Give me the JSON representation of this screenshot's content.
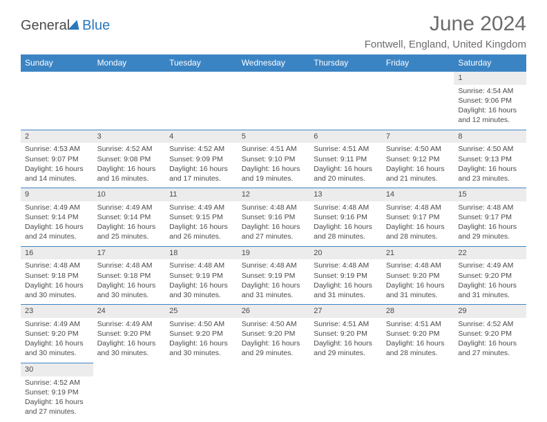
{
  "logo": {
    "text1": "General",
    "text2": "Blue"
  },
  "title": "June 2024",
  "location": "Fontwell, England, United Kingdom",
  "colors": {
    "header_bg": "#3b84c4",
    "header_text": "#ffffff",
    "daynum_bg": "#ececec",
    "cell_border": "#3b84c4",
    "text": "#4a4a4a",
    "logo_gray": "#4a4a4a",
    "logo_blue": "#2a78bb",
    "title_gray": "#6b6b6b"
  },
  "day_headers": [
    "Sunday",
    "Monday",
    "Tuesday",
    "Wednesday",
    "Thursday",
    "Friday",
    "Saturday"
  ],
  "weeks": [
    [
      null,
      null,
      null,
      null,
      null,
      null,
      {
        "n": "1",
        "sr": "4:54 AM",
        "ss": "9:06 PM",
        "dl": "16 hours and 12 minutes."
      }
    ],
    [
      {
        "n": "2",
        "sr": "4:53 AM",
        "ss": "9:07 PM",
        "dl": "16 hours and 14 minutes."
      },
      {
        "n": "3",
        "sr": "4:52 AM",
        "ss": "9:08 PM",
        "dl": "16 hours and 16 minutes."
      },
      {
        "n": "4",
        "sr": "4:52 AM",
        "ss": "9:09 PM",
        "dl": "16 hours and 17 minutes."
      },
      {
        "n": "5",
        "sr": "4:51 AM",
        "ss": "9:10 PM",
        "dl": "16 hours and 19 minutes."
      },
      {
        "n": "6",
        "sr": "4:51 AM",
        "ss": "9:11 PM",
        "dl": "16 hours and 20 minutes."
      },
      {
        "n": "7",
        "sr": "4:50 AM",
        "ss": "9:12 PM",
        "dl": "16 hours and 21 minutes."
      },
      {
        "n": "8",
        "sr": "4:50 AM",
        "ss": "9:13 PM",
        "dl": "16 hours and 23 minutes."
      }
    ],
    [
      {
        "n": "9",
        "sr": "4:49 AM",
        "ss": "9:14 PM",
        "dl": "16 hours and 24 minutes."
      },
      {
        "n": "10",
        "sr": "4:49 AM",
        "ss": "9:14 PM",
        "dl": "16 hours and 25 minutes."
      },
      {
        "n": "11",
        "sr": "4:49 AM",
        "ss": "9:15 PM",
        "dl": "16 hours and 26 minutes."
      },
      {
        "n": "12",
        "sr": "4:48 AM",
        "ss": "9:16 PM",
        "dl": "16 hours and 27 minutes."
      },
      {
        "n": "13",
        "sr": "4:48 AM",
        "ss": "9:16 PM",
        "dl": "16 hours and 28 minutes."
      },
      {
        "n": "14",
        "sr": "4:48 AM",
        "ss": "9:17 PM",
        "dl": "16 hours and 28 minutes."
      },
      {
        "n": "15",
        "sr": "4:48 AM",
        "ss": "9:17 PM",
        "dl": "16 hours and 29 minutes."
      }
    ],
    [
      {
        "n": "16",
        "sr": "4:48 AM",
        "ss": "9:18 PM",
        "dl": "16 hours and 30 minutes."
      },
      {
        "n": "17",
        "sr": "4:48 AM",
        "ss": "9:18 PM",
        "dl": "16 hours and 30 minutes."
      },
      {
        "n": "18",
        "sr": "4:48 AM",
        "ss": "9:19 PM",
        "dl": "16 hours and 30 minutes."
      },
      {
        "n": "19",
        "sr": "4:48 AM",
        "ss": "9:19 PM",
        "dl": "16 hours and 31 minutes."
      },
      {
        "n": "20",
        "sr": "4:48 AM",
        "ss": "9:19 PM",
        "dl": "16 hours and 31 minutes."
      },
      {
        "n": "21",
        "sr": "4:48 AM",
        "ss": "9:20 PM",
        "dl": "16 hours and 31 minutes."
      },
      {
        "n": "22",
        "sr": "4:49 AM",
        "ss": "9:20 PM",
        "dl": "16 hours and 31 minutes."
      }
    ],
    [
      {
        "n": "23",
        "sr": "4:49 AM",
        "ss": "9:20 PM",
        "dl": "16 hours and 30 minutes."
      },
      {
        "n": "24",
        "sr": "4:49 AM",
        "ss": "9:20 PM",
        "dl": "16 hours and 30 minutes."
      },
      {
        "n": "25",
        "sr": "4:50 AM",
        "ss": "9:20 PM",
        "dl": "16 hours and 30 minutes."
      },
      {
        "n": "26",
        "sr": "4:50 AM",
        "ss": "9:20 PM",
        "dl": "16 hours and 29 minutes."
      },
      {
        "n": "27",
        "sr": "4:51 AM",
        "ss": "9:20 PM",
        "dl": "16 hours and 29 minutes."
      },
      {
        "n": "28",
        "sr": "4:51 AM",
        "ss": "9:20 PM",
        "dl": "16 hours and 28 minutes."
      },
      {
        "n": "29",
        "sr": "4:52 AM",
        "ss": "9:20 PM",
        "dl": "16 hours and 27 minutes."
      }
    ],
    [
      {
        "n": "30",
        "sr": "4:52 AM",
        "ss": "9:19 PM",
        "dl": "16 hours and 27 minutes."
      },
      null,
      null,
      null,
      null,
      null,
      null
    ]
  ],
  "labels": {
    "sunrise": "Sunrise: ",
    "sunset": "Sunset: ",
    "daylight": "Daylight: "
  }
}
